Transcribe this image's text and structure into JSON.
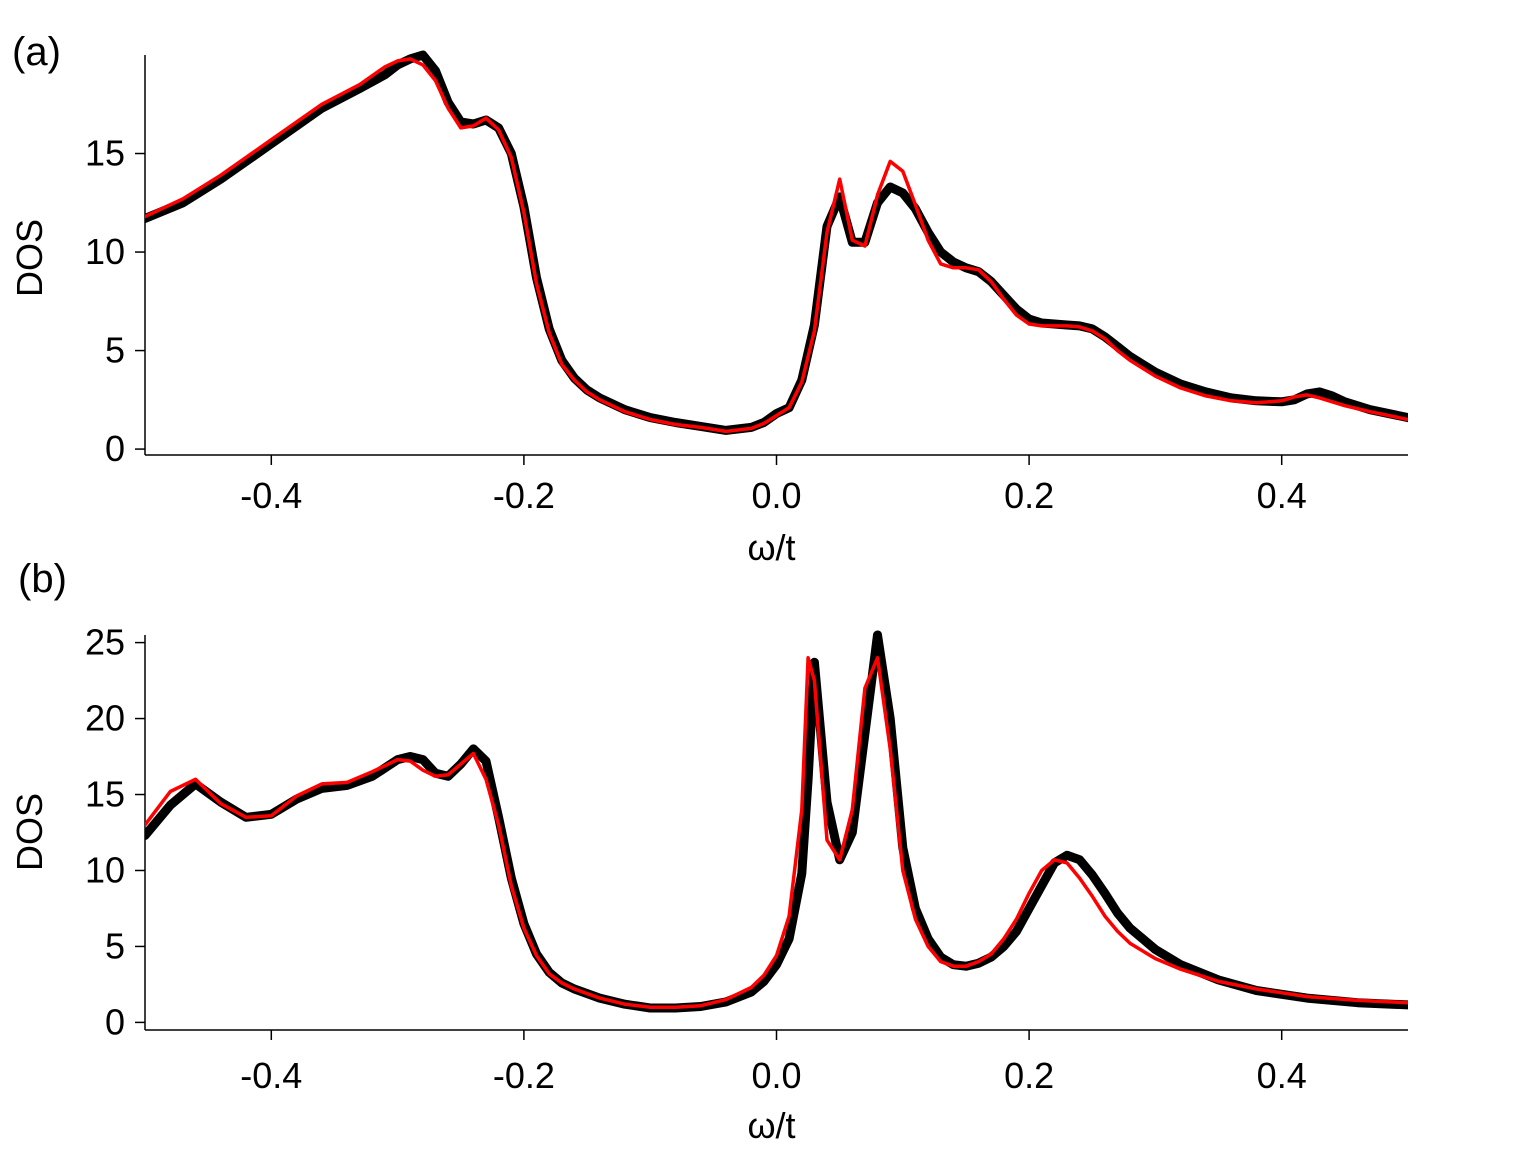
{
  "chart_data": [
    {
      "type": "line",
      "panel_label": "(a)",
      "xlabel": "ω/t",
      "ylabel": "DOS",
      "xlim": [
        -0.5,
        0.5
      ],
      "ylim": [
        -0.3,
        20
      ],
      "xticks": [
        -0.4,
        -0.2,
        0.0,
        0.2,
        0.4
      ],
      "xtick_labels": [
        "-0.4",
        "-0.2",
        "0.0",
        "0.2",
        "0.4"
      ],
      "yticks": [
        0,
        5,
        10,
        15
      ],
      "ytick_labels": [
        "0",
        "5",
        "10",
        "15"
      ],
      "grid": false,
      "legend": "none",
      "series": [
        {
          "color": "#000000",
          "x": [
            -0.5,
            -0.47,
            -0.44,
            -0.4,
            -0.36,
            -0.33,
            -0.31,
            -0.3,
            -0.29,
            -0.28,
            -0.27,
            -0.26,
            -0.25,
            -0.24,
            -0.23,
            -0.22,
            -0.21,
            -0.2,
            -0.19,
            -0.18,
            -0.17,
            -0.16,
            -0.15,
            -0.14,
            -0.12,
            -0.1,
            -0.08,
            -0.06,
            -0.04,
            -0.02,
            -0.01,
            0.0,
            0.01,
            0.02,
            0.03,
            0.04,
            0.05,
            0.06,
            0.07,
            0.08,
            0.09,
            0.1,
            0.11,
            0.12,
            0.13,
            0.14,
            0.15,
            0.16,
            0.17,
            0.18,
            0.19,
            0.2,
            0.21,
            0.22,
            0.23,
            0.24,
            0.25,
            0.26,
            0.27,
            0.28,
            0.3,
            0.32,
            0.34,
            0.36,
            0.38,
            0.4,
            0.41,
            0.42,
            0.43,
            0.44,
            0.45,
            0.47,
            0.5
          ],
          "y": [
            11.7,
            12.5,
            13.7,
            15.5,
            17.3,
            18.3,
            19.0,
            19.5,
            19.8,
            20.0,
            19.2,
            17.6,
            16.6,
            16.5,
            16.7,
            16.3,
            15.0,
            12.3,
            8.7,
            6.1,
            4.5,
            3.6,
            3.0,
            2.6,
            2.0,
            1.6,
            1.35,
            1.15,
            0.95,
            1.1,
            1.35,
            1.8,
            2.1,
            3.5,
            6.3,
            11.3,
            12.8,
            10.5,
            10.5,
            12.5,
            13.3,
            13.0,
            12.2,
            11.0,
            10.0,
            9.5,
            9.2,
            9.0,
            8.5,
            7.8,
            7.1,
            6.6,
            6.4,
            6.35,
            6.3,
            6.25,
            6.1,
            5.7,
            5.2,
            4.7,
            3.9,
            3.3,
            2.9,
            2.6,
            2.45,
            2.4,
            2.5,
            2.8,
            2.9,
            2.7,
            2.4,
            2.0,
            1.6
          ]
        },
        {
          "color": "#ff0000",
          "x": [
            -0.5,
            -0.47,
            -0.44,
            -0.4,
            -0.36,
            -0.33,
            -0.31,
            -0.3,
            -0.29,
            -0.28,
            -0.27,
            -0.26,
            -0.25,
            -0.24,
            -0.23,
            -0.22,
            -0.21,
            -0.2,
            -0.19,
            -0.18,
            -0.17,
            -0.16,
            -0.15,
            -0.14,
            -0.12,
            -0.1,
            -0.08,
            -0.06,
            -0.04,
            -0.02,
            -0.01,
            0.0,
            0.01,
            0.02,
            0.03,
            0.04,
            0.05,
            0.06,
            0.07,
            0.08,
            0.09,
            0.1,
            0.11,
            0.12,
            0.13,
            0.14,
            0.15,
            0.16,
            0.17,
            0.18,
            0.19,
            0.2,
            0.21,
            0.22,
            0.23,
            0.24,
            0.25,
            0.26,
            0.27,
            0.28,
            0.3,
            0.32,
            0.34,
            0.36,
            0.38,
            0.4,
            0.41,
            0.42,
            0.43,
            0.44,
            0.45,
            0.47,
            0.5
          ],
          "y": [
            11.8,
            12.7,
            13.9,
            15.7,
            17.5,
            18.5,
            19.4,
            19.7,
            19.8,
            19.5,
            18.7,
            17.3,
            16.3,
            16.4,
            16.8,
            16.2,
            14.8,
            12.0,
            8.4,
            5.9,
            4.3,
            3.5,
            2.9,
            2.5,
            1.9,
            1.5,
            1.25,
            1.1,
            0.9,
            1.05,
            1.3,
            1.7,
            2.1,
            3.4,
            6.0,
            11.0,
            13.7,
            10.6,
            10.3,
            12.9,
            14.6,
            14.1,
            12.4,
            10.6,
            9.4,
            9.2,
            9.2,
            9.1,
            8.5,
            7.6,
            6.8,
            6.35,
            6.25,
            6.25,
            6.25,
            6.2,
            6.0,
            5.6,
            5.0,
            4.5,
            3.7,
            3.1,
            2.7,
            2.45,
            2.35,
            2.45,
            2.65,
            2.75,
            2.6,
            2.4,
            2.2,
            1.9,
            1.5
          ]
        }
      ]
    },
    {
      "type": "line",
      "panel_label": "(b)",
      "xlabel": "ω/t",
      "ylabel": "DOS",
      "xlim": [
        -0.5,
        0.5
      ],
      "ylim": [
        -0.5,
        25.5
      ],
      "xticks": [
        -0.4,
        -0.2,
        0.0,
        0.2,
        0.4
      ],
      "xtick_labels": [
        "-0.4",
        "-0.2",
        "0.0",
        "0.2",
        "0.4"
      ],
      "yticks": [
        0,
        5,
        10,
        15,
        20,
        25
      ],
      "ytick_labels": [
        "0",
        "5",
        "10",
        "15",
        "20",
        "25"
      ],
      "grid": false,
      "legend": "none",
      "series": [
        {
          "color": "#000000",
          "x": [
            -0.5,
            -0.48,
            -0.46,
            -0.44,
            -0.42,
            -0.4,
            -0.38,
            -0.36,
            -0.34,
            -0.32,
            -0.3,
            -0.29,
            -0.28,
            -0.27,
            -0.26,
            -0.25,
            -0.24,
            -0.23,
            -0.22,
            -0.21,
            -0.2,
            -0.19,
            -0.18,
            -0.17,
            -0.16,
            -0.14,
            -0.12,
            -0.1,
            -0.08,
            -0.06,
            -0.04,
            -0.02,
            -0.01,
            0.0,
            0.01,
            0.02,
            0.025,
            0.03,
            0.04,
            0.05,
            0.06,
            0.07,
            0.08,
            0.09,
            0.1,
            0.11,
            0.12,
            0.13,
            0.14,
            0.15,
            0.16,
            0.17,
            0.18,
            0.19,
            0.2,
            0.21,
            0.22,
            0.23,
            0.24,
            0.25,
            0.26,
            0.27,
            0.28,
            0.3,
            0.32,
            0.35,
            0.38,
            0.42,
            0.46,
            0.5
          ],
          "y": [
            12.3,
            14.3,
            15.7,
            14.5,
            13.5,
            13.7,
            14.7,
            15.4,
            15.6,
            16.2,
            17.3,
            17.5,
            17.3,
            16.4,
            16.2,
            17.0,
            18.0,
            17.2,
            13.5,
            9.5,
            6.5,
            4.5,
            3.3,
            2.6,
            2.2,
            1.6,
            1.2,
            0.95,
            0.95,
            1.05,
            1.35,
            2.0,
            2.7,
            3.8,
            5.5,
            9.8,
            16.0,
            23.7,
            14.5,
            10.7,
            12.5,
            19.0,
            25.5,
            20.0,
            11.5,
            7.5,
            5.5,
            4.3,
            3.8,
            3.7,
            3.9,
            4.3,
            5.0,
            6.0,
            7.5,
            9.0,
            10.5,
            11.0,
            10.7,
            9.7,
            8.5,
            7.2,
            6.2,
            4.8,
            3.8,
            2.8,
            2.1,
            1.6,
            1.3,
            1.15
          ]
        },
        {
          "color": "#ff0000",
          "x": [
            -0.5,
            -0.48,
            -0.46,
            -0.44,
            -0.42,
            -0.4,
            -0.38,
            -0.36,
            -0.34,
            -0.32,
            -0.3,
            -0.29,
            -0.28,
            -0.27,
            -0.26,
            -0.25,
            -0.24,
            -0.23,
            -0.22,
            -0.21,
            -0.2,
            -0.19,
            -0.18,
            -0.17,
            -0.16,
            -0.14,
            -0.12,
            -0.1,
            -0.08,
            -0.06,
            -0.04,
            -0.02,
            -0.01,
            0.0,
            0.01,
            0.02,
            0.025,
            0.03,
            0.04,
            0.05,
            0.06,
            0.07,
            0.08,
            0.09,
            0.1,
            0.11,
            0.12,
            0.13,
            0.14,
            0.15,
            0.16,
            0.17,
            0.18,
            0.19,
            0.2,
            0.21,
            0.22,
            0.23,
            0.24,
            0.25,
            0.26,
            0.27,
            0.28,
            0.3,
            0.32,
            0.35,
            0.38,
            0.42,
            0.46,
            0.5
          ],
          "y": [
            13.0,
            15.2,
            16.0,
            14.4,
            13.5,
            13.6,
            14.9,
            15.7,
            15.8,
            16.5,
            17.3,
            17.2,
            16.6,
            16.2,
            16.3,
            17.0,
            17.7,
            16.0,
            13.0,
            9.0,
            6.2,
            4.4,
            3.2,
            2.6,
            2.2,
            1.6,
            1.2,
            1.0,
            1.0,
            1.1,
            1.5,
            2.3,
            3.1,
            4.4,
            7.0,
            14.0,
            24.0,
            22.5,
            12.0,
            10.7,
            14.0,
            22.0,
            24.0,
            18.0,
            10.0,
            6.8,
            5.0,
            4.0,
            3.7,
            3.7,
            4.0,
            4.5,
            5.5,
            6.8,
            8.5,
            10.0,
            10.7,
            10.5,
            9.5,
            8.3,
            7.0,
            6.0,
            5.2,
            4.2,
            3.5,
            2.7,
            2.2,
            1.7,
            1.45,
            1.3
          ]
        }
      ]
    }
  ]
}
